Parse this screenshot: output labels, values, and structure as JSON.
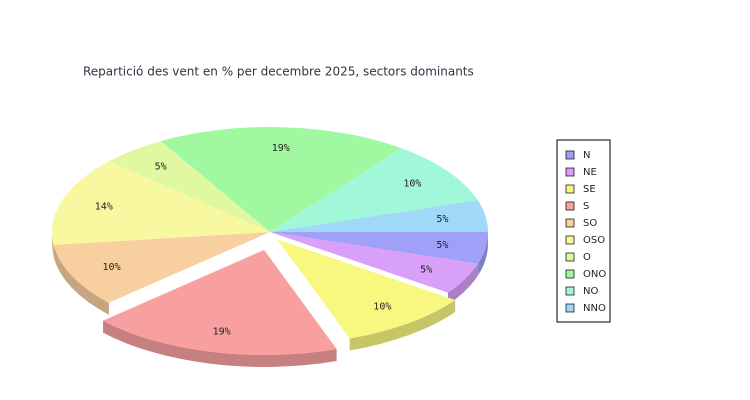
{
  "chart_data": {
    "type": "pie3d",
    "title": "Repartició des vent en % per decembre 2025, sectors dominants",
    "categories": [
      "N",
      "NE",
      "SE",
      "S",
      "SO",
      "OSO",
      "O",
      "ONO",
      "NO",
      "NNO"
    ],
    "values": [
      5,
      5,
      10,
      19,
      10,
      14,
      5,
      19,
      10,
      5
    ],
    "value_labels": [
      "5%",
      "5%",
      "10%",
      "19%",
      "10%",
      "14%",
      "5%",
      "19%",
      "10%",
      "5%"
    ],
    "colors": [
      "#a0a0f8",
      "#d8a0f8",
      "#f8f880",
      "#f8a0a0",
      "#f8d0a0",
      "#f8f8a0",
      "#e0f8a0",
      "#a0f8a0",
      "#a0f8d8",
      "#a0d8f8"
    ],
    "legend": "right"
  }
}
